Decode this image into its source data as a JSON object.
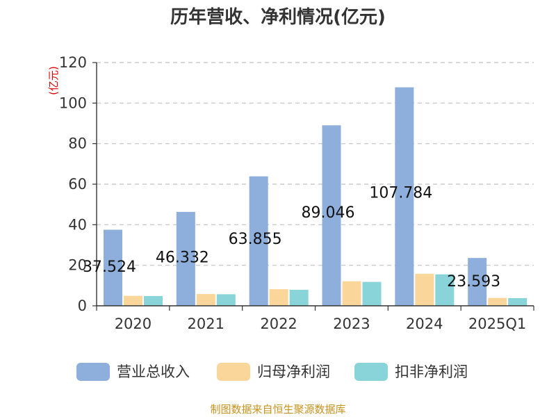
{
  "chart_data": {
    "type": "bar",
    "title": "历年营收、净利情况(亿元)",
    "ylabel": "(亿元)",
    "xlabel": "",
    "categories": [
      "2020",
      "2021",
      "2022",
      "2023",
      "2024",
      "2025Q1"
    ],
    "ylim": [
      0,
      120
    ],
    "yticks": [
      0,
      20,
      40,
      60,
      80,
      100,
      120
    ],
    "grid": true,
    "legend_position": "bottom",
    "series": [
      {
        "name": "营业总收入",
        "color": "#8eaedb",
        "values": [
          37.524,
          46.332,
          63.855,
          89.046,
          107.784,
          23.593
        ],
        "labels": [
          "37.524",
          "46.332",
          "63.855",
          "89.046",
          "107.784",
          "23.593"
        ]
      },
      {
        "name": "归母净利润",
        "color": "#fbd69a",
        "values": [
          4.9,
          5.8,
          8.2,
          12.1,
          15.8,
          3.9
        ]
      },
      {
        "name": "扣非净利润",
        "color": "#88d4d8",
        "values": [
          4.8,
          5.7,
          7.9,
          11.8,
          15.5,
          3.8
        ]
      }
    ],
    "source": "制图数据来自恒生聚源数据库"
  }
}
